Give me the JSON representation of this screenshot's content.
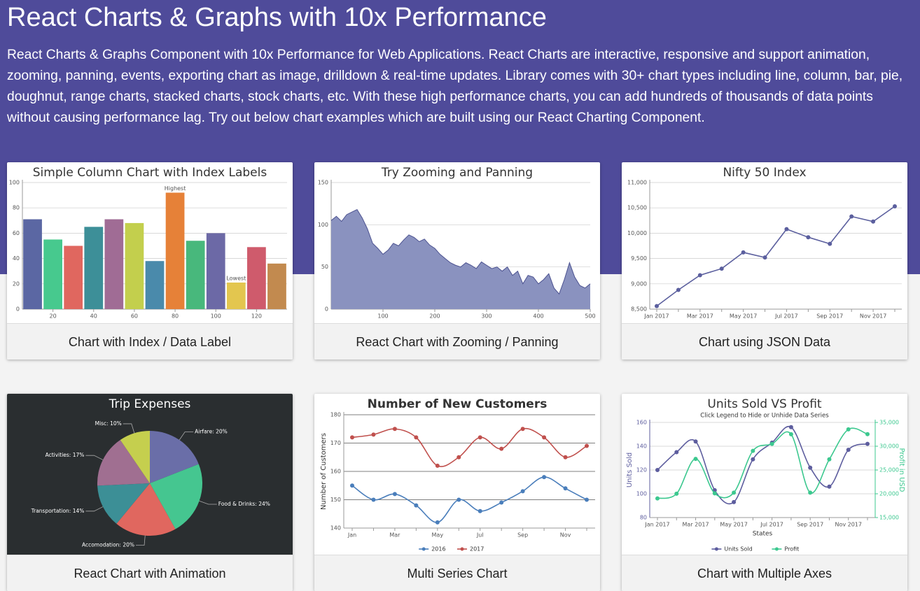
{
  "header": {
    "title": "React Charts & Graphs with 10x Performance",
    "description": "React Charts & Graphs Component with 10x Performance for Web Applications. React Charts are interactive, responsive and support animation, zooming, panning, events, exporting chart as image, drilldown & real-time updates. Library comes with 30+ chart types including line, column, bar, pie, doughnut, range charts, stacked charts, stock charts, etc. With these high performance charts, you can add hundreds of thousands of data points without causing performance lag. Try out below chart examples which are built using our React Charting Component."
  },
  "chart_data": [
    {
      "type": "bar",
      "title": "Simple Column Chart with Index Labels",
      "caption": "Chart with Index / Data Label",
      "x": [
        10,
        20,
        30,
        40,
        50,
        60,
        70,
        80,
        90,
        100,
        110,
        120,
        130
      ],
      "values": [
        71,
        55,
        50,
        65,
        71,
        68,
        38,
        92,
        54,
        60,
        21,
        49,
        36
      ],
      "colors": [
        "#5b67a3",
        "#47c98e",
        "#e0675f",
        "#3d8f98",
        "#a06c95",
        "#c3cf4d",
        "#4a8aab",
        "#e68138",
        "#48b87c",
        "#6c69a6",
        "#e3c64f",
        "#cf5b6c",
        "#c28a4f"
      ],
      "annotations": [
        {
          "x": 80,
          "label": "Highest"
        },
        {
          "x": 110,
          "label": "Lowest"
        }
      ],
      "xlim": [
        5,
        135
      ],
      "xticks": [
        20,
        40,
        60,
        80,
        100,
        120
      ],
      "ylim": [
        0,
        100
      ],
      "yticks": [
        0,
        20,
        40,
        60,
        80,
        100
      ],
      "grid": true
    },
    {
      "type": "area",
      "title": "Try Zooming and Panning",
      "caption": "React Chart with Zooming / Panning",
      "color": "#8a92bf",
      "line_color": "#4c5290",
      "x": [
        0,
        10,
        20,
        30,
        40,
        50,
        60,
        70,
        80,
        90,
        100,
        110,
        120,
        130,
        140,
        150,
        160,
        170,
        180,
        190,
        200,
        210,
        220,
        230,
        240,
        250,
        260,
        270,
        280,
        290,
        300,
        310,
        320,
        330,
        340,
        350,
        360,
        370,
        380,
        390,
        400,
        410,
        420,
        430,
        440,
        450,
        460,
        470,
        480,
        490,
        500
      ],
      "values": [
        105,
        110,
        104,
        112,
        115,
        118,
        108,
        95,
        78,
        72,
        65,
        70,
        78,
        75,
        82,
        88,
        85,
        80,
        83,
        76,
        72,
        65,
        60,
        55,
        52,
        50,
        55,
        52,
        48,
        56,
        52,
        48,
        50,
        45,
        50,
        40,
        45,
        30,
        40,
        38,
        30,
        35,
        42,
        25,
        18,
        35,
        55,
        38,
        28,
        25,
        30
      ],
      "xlim": [
        0,
        500
      ],
      "xticks": [
        100,
        200,
        300,
        400,
        500
      ],
      "ylim": [
        0,
        150
      ],
      "yticks": [
        0,
        50,
        100,
        150
      ],
      "grid": true
    },
    {
      "type": "line",
      "title": "Nifty 50 Index",
      "caption": "Chart using JSON Data",
      "color": "#5b5f9e",
      "categories": [
        "Jan 2017",
        null,
        "Mar 2017",
        null,
        "May 2017",
        null,
        "Jul 2017",
        null,
        "Sep 2017",
        null,
        "Nov 2017",
        null
      ],
      "values": [
        8560,
        8880,
        9170,
        9300,
        9620,
        9520,
        10080,
        9920,
        9790,
        10330,
        10230,
        10530
      ],
      "ylim": [
        8500,
        11000
      ],
      "yticks": [
        {
          "value": 8500,
          "label": "8,500"
        },
        {
          "value": 9000,
          "label": "9,000"
        },
        {
          "value": 9500,
          "label": "9,500"
        },
        {
          "value": 10000,
          "label": "10,000"
        },
        {
          "value": 10500,
          "label": "10,500"
        },
        {
          "value": 11000,
          "label": "11,000"
        }
      ],
      "grid": true
    },
    {
      "type": "pie",
      "title": "Trip Expenses",
      "caption": "React Chart with Animation",
      "background": "#2a2e30",
      "values": [
        20,
        24,
        20,
        14,
        17,
        10
      ],
      "value_labels": [
        "Airfare: 20%",
        "Food & Drinks: 24%",
        "Accomodation: 20%",
        "Transportation: 14%",
        "Activities: 17%",
        "Misc: 10%"
      ],
      "colors": [
        "#6a6ea8",
        "#45c690",
        "#e0675f",
        "#3c8f96",
        "#a06f91",
        "#c5cf4e"
      ]
    },
    {
      "type": "line",
      "title": "Number of New Customers",
      "caption": "Multi Series Chart",
      "smooth": true,
      "legend": "bottom",
      "categories": [
        "Jan",
        null,
        "Mar",
        null,
        "May",
        null,
        "Jul",
        null,
        "Sep",
        null,
        "Nov",
        null
      ],
      "series": [
        {
          "name": "2016",
          "color": "#4a7ebb",
          "values": [
            155,
            150,
            152,
            148,
            142,
            150,
            146,
            149,
            153,
            158,
            154,
            150
          ]
        },
        {
          "name": "2017",
          "color": "#c0504d",
          "values": [
            172,
            173,
            175,
            172,
            162,
            165,
            172,
            168,
            175,
            172,
            165,
            169
          ]
        }
      ],
      "y_label": "Number of Customers",
      "ylim": [
        140,
        180
      ],
      "yticks": [
        140,
        150,
        160,
        170,
        180
      ],
      "grid": true
    },
    {
      "type": "line",
      "title": "Units Sold VS Profit",
      "subtitle": "Click Legend to Hide or Unhide Data Series",
      "caption": "Chart with Multiple Axes",
      "smooth": true,
      "legend": "bottom",
      "categories": [
        "Jan 2017",
        null,
        "Mar 2017",
        null,
        "May 2017",
        null,
        "Jul 2017",
        null,
        "Sep 2017",
        null,
        "Nov 2017",
        null
      ],
      "series": [
        {
          "name": "Units Sold",
          "color": "#5d5d9e",
          "values": [
            120,
            135,
            144,
            103,
            93,
            129,
            143,
            156,
            122,
            106,
            137,
            142
          ]
        },
        {
          "name": "Profit",
          "color": "#3cc88f",
          "axis": "y2",
          "values": [
            19034,
            20015,
            27342,
            20088,
            20234,
            29034,
            30487,
            32523,
            20234,
            27234,
            33548,
            32534
          ]
        }
      ],
      "x_label": "States",
      "y_label": "Units Sold",
      "y2_label": "Profit in USD",
      "ylim": [
        80,
        160
      ],
      "yticks": [
        80,
        100,
        120,
        140,
        160
      ],
      "y2lim": [
        15000,
        35000
      ],
      "y2ticks": [
        {
          "value": 15000,
          "label": "15,000"
        },
        {
          "value": 20000,
          "label": "20,000"
        },
        {
          "value": 25000,
          "label": "25,000"
        },
        {
          "value": 30000,
          "label": "30,000"
        },
        {
          "value": 35000,
          "label": "35,000"
        }
      ],
      "grid": true
    }
  ]
}
